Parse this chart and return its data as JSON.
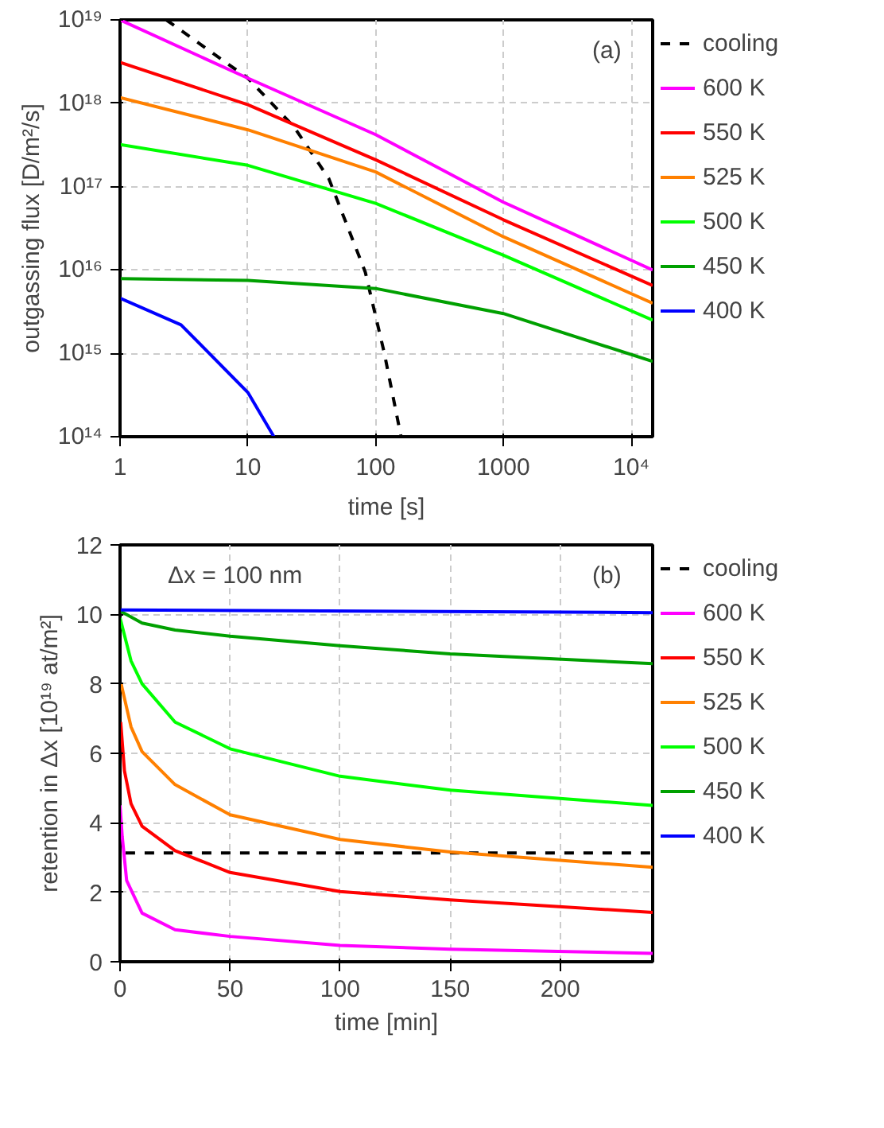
{
  "chart_data": [
    {
      "type": "line",
      "xlabel": "time [s]",
      "ylabel": "outgassing flux [D/m²/s]",
      "log": "xy",
      "grid": true,
      "legend": "right",
      "annotations": [
        "(a)"
      ],
      "xlim": [
        1,
        14700
      ],
      "ylim": [
        100000000000000.0,
        1e+19
      ],
      "xticks": [
        1,
        10,
        100,
        1000,
        {
          "value": 10000,
          "label": "10⁴"
        }
      ],
      "yticks": [
        {
          "value": 100000000000000.0,
          "label": "10¹⁴"
        },
        {
          "value": 1000000000000000.0,
          "label": "10¹⁵"
        },
        {
          "value": 1e+16,
          "label": "10¹⁶"
        },
        {
          "value": 1e+17,
          "label": "10¹⁷"
        },
        {
          "value": 1e+18,
          "label": "10¹⁸"
        },
        {
          "value": 1e+19,
          "label": "10¹⁹"
        }
      ],
      "series": [
        {
          "name": "cooling",
          "color": "#000000",
          "line_style": "dashed",
          "x": [
            2.3,
            10,
            23,
            43,
            83,
            117,
            158
          ],
          "values": [
            1e+19,
            2e+18,
            5.2e+17,
            1.25e+17,
            9400000000000000.0,
            1000000000000000.0,
            100000000000000.0
          ]
        },
        {
          "name": "600 K",
          "color": "#ff00ff",
          "x": [
            1,
            10,
            100,
            1000,
            14700
          ],
          "values": [
            1e+19,
            2e+18,
            4.2e+17,
            6.5e+16,
            1e+16
          ]
        },
        {
          "name": "550 K",
          "color": "#ff0000",
          "x": [
            1,
            10,
            100,
            1000,
            14700
          ],
          "values": [
            3.1e+18,
            9.6e+17,
            2.1e+17,
            4e+16,
            6500000000000000.0
          ]
        },
        {
          "name": "525 K",
          "color": "#ff8000",
          "x": [
            1,
            10,
            100,
            1000,
            14700
          ],
          "values": [
            1.17e+18,
            4.8e+17,
            1.5e+17,
            2.5e+16,
            4000000000000000.0
          ]
        },
        {
          "name": "500 K",
          "color": "#00ff00",
          "x": [
            1,
            10,
            100,
            1000,
            14700
          ],
          "values": [
            3.2e+17,
            1.8e+17,
            6.3e+16,
            1.5e+16,
            2500000000000000.0
          ]
        },
        {
          "name": "450 K",
          "color": "#00a000",
          "x": [
            1,
            10,
            100,
            1000,
            14700
          ],
          "values": [
            7900000000000000.0,
            7500000000000000.0,
            6000000000000000.0,
            3000000000000000.0,
            800000000000000.0
          ]
        },
        {
          "name": "400 K",
          "color": "#0000ff",
          "x": [
            1,
            3,
            10,
            16
          ],
          "values": [
            4600000000000000.0,
            2200000000000000.0,
            340000000000000.0,
            100000000000000.0
          ]
        }
      ]
    },
    {
      "type": "line",
      "xlabel": "time [min]",
      "ylabel": "retention in Δx [10¹⁹ at/m²]",
      "grid": true,
      "legend": "right",
      "annotations": [
        "Δx = 100 nm",
        "(b)"
      ],
      "xlim": [
        0,
        242
      ],
      "ylim": [
        0,
        12
      ],
      "xticks": [
        0,
        50,
        100,
        150,
        200
      ],
      "yticks": [
        0,
        2,
        4,
        6,
        8,
        10,
        12
      ],
      "series": [
        {
          "name": "cooling",
          "color": "#000000",
          "line_style": "dashed",
          "x": [
            2.5,
            242
          ],
          "values": [
            3.13,
            3.13
          ]
        },
        {
          "name": "600 K",
          "color": "#ff00ff",
          "x": [
            0,
            1,
            3,
            10,
            25,
            50,
            100,
            150,
            242
          ],
          "values": [
            4.5,
            3.6,
            2.34,
            1.4,
            0.92,
            0.73,
            0.47,
            0.36,
            0.24
          ]
        },
        {
          "name": "550 K",
          "color": "#ff0000",
          "x": [
            0.3,
            2,
            5,
            10,
            25,
            50,
            100,
            150,
            242
          ],
          "values": [
            6.9,
            5.5,
            4.55,
            3.9,
            3.2,
            2.57,
            2.02,
            1.78,
            1.42
          ]
        },
        {
          "name": "525 K",
          "color": "#ff8000",
          "x": [
            0.5,
            5,
            10,
            25,
            50,
            100,
            150,
            242
          ],
          "values": [
            8.0,
            6.76,
            6.05,
            5.1,
            4.23,
            3.52,
            3.16,
            2.72
          ]
        },
        {
          "name": "500 K",
          "color": "#00ff00",
          "x": [
            0,
            5,
            10,
            25,
            50,
            100,
            150,
            242
          ],
          "values": [
            9.9,
            8.66,
            8.0,
            6.9,
            6.13,
            5.34,
            4.94,
            4.5
          ]
        },
        {
          "name": "450 K",
          "color": "#00a000",
          "x": [
            0,
            10,
            25,
            50,
            100,
            150,
            242
          ],
          "values": [
            10.1,
            9.75,
            9.55,
            9.37,
            9.1,
            8.86,
            8.58
          ]
        },
        {
          "name": "400 K",
          "color": "#0000ff",
          "x": [
            0,
            242
          ],
          "values": [
            10.13,
            10.05
          ]
        }
      ]
    }
  ]
}
